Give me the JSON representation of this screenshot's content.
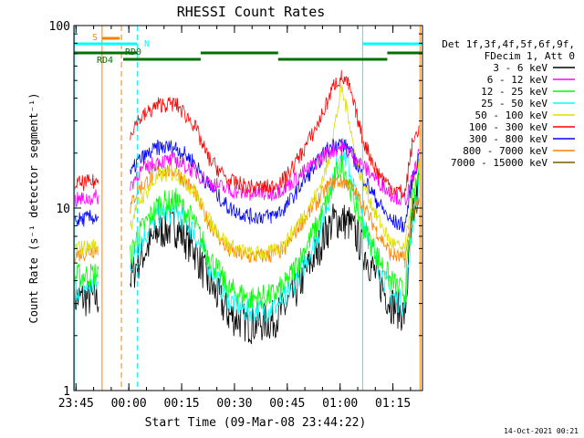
{
  "chart_data": {
    "type": "line",
    "title": "RHESSI Count Rates",
    "xlabel": "Start Time (09-Mar-08 23:44:22)",
    "ylabel": "Count Rate (s⁻¹ detector segment⁻¹)",
    "y_scale": "log",
    "ylim": [
      1,
      100
    ],
    "xlim_minutes": [
      0,
      99
    ],
    "x_ticks": [
      {
        "label": "23:45",
        "minute": 0.6
      },
      {
        "label": "00:00",
        "minute": 15.6
      },
      {
        "label": "00:15",
        "minute": 30.6
      },
      {
        "label": "00:30",
        "minute": 45.6
      },
      {
        "label": "00:45",
        "minute": 60.6
      },
      {
        "label": "01:00",
        "minute": 75.6
      },
      {
        "label": "01:15",
        "minute": 90.6
      }
    ],
    "y_ticks": [
      {
        "label": "1",
        "value": 1
      },
      {
        "label": "10",
        "value": 10
      },
      {
        "label": "100",
        "value": 100
      }
    ],
    "grid": false,
    "legend_position": "right",
    "legend_header": [
      "Det 1f,3f,4f,5f,6f,9f,",
      "FDecim 1, Att 0"
    ],
    "x_minutes": [
      0,
      7,
      8,
      15,
      16,
      18,
      24,
      29,
      34,
      38,
      44,
      50,
      56,
      60,
      64,
      69,
      72,
      74,
      76,
      78,
      80,
      82,
      86,
      90,
      94,
      96,
      98
    ],
    "series": [
      {
        "name": "3 - 6 keV",
        "color": "#000000",
        "values": [
          3.2,
          3.2,
          null,
          null,
          4.0,
          5.0,
          7.5,
          7.8,
          6.0,
          4.0,
          2.6,
          2.3,
          2.4,
          2.8,
          3.8,
          5.8,
          7.6,
          8.6,
          8.6,
          8.3,
          7.2,
          6.0,
          4.2,
          3.0,
          2.6,
          8.0,
          14.0
        ]
      },
      {
        "name": "6 - 12 keV",
        "color": "#ff00ff",
        "values": [
          11.0,
          11.5,
          null,
          null,
          13.0,
          15.5,
          18.0,
          18.2,
          16.0,
          14.0,
          12.5,
          12.0,
          12.0,
          13.0,
          15.0,
          18.0,
          20.0,
          21.0,
          21.5,
          20.5,
          19.0,
          17.0,
          14.5,
          12.0,
          11.0,
          14.0,
          20.0
        ]
      },
      {
        "name": "12 - 25 keV",
        "color": "#00ff00",
        "values": [
          4.2,
          4.4,
          null,
          null,
          5.4,
          7.0,
          10.5,
          11.0,
          8.5,
          5.6,
          3.6,
          3.2,
          3.3,
          3.8,
          5.2,
          8.0,
          11.0,
          14.5,
          18.0,
          14.0,
          10.2,
          8.0,
          5.6,
          4.0,
          3.4,
          10.0,
          16.0
        ]
      },
      {
        "name": "25 - 50 keV",
        "color": "#00ffff",
        "values": [
          3.6,
          3.8,
          null,
          null,
          4.8,
          6.2,
          9.2,
          9.6,
          7.4,
          5.0,
          3.1,
          2.7,
          2.8,
          3.2,
          4.4,
          6.8,
          10.5,
          15.0,
          22.0,
          17.0,
          12.0,
          9.0,
          5.0,
          3.4,
          2.9,
          8.0,
          13.0
        ]
      },
      {
        "name": "50 - 100 keV",
        "color": "#dddd00",
        "values": [
          6.0,
          6.2,
          null,
          null,
          8.0,
          10.5,
          15.0,
          15.5,
          12.5,
          8.8,
          6.2,
          5.6,
          5.7,
          6.4,
          8.4,
          12.0,
          17.0,
          28.0,
          45.0,
          32.0,
          18.5,
          14.0,
          9.0,
          6.5,
          5.8,
          12.0,
          18.0
        ]
      },
      {
        "name": "100 - 300 keV",
        "color": "#ff0000",
        "values": [
          13.5,
          14.0,
          null,
          null,
          26.0,
          30.0,
          37.0,
          37.0,
          29.0,
          19.0,
          14.0,
          13.0,
          13.0,
          14.5,
          19.0,
          28.0,
          38.0,
          48.0,
          52.0,
          47.0,
          34.0,
          24.0,
          16.0,
          13.0,
          12.0,
          22.0,
          28.0
        ]
      },
      {
        "name": "300 - 800 keV",
        "color": "#0000ff",
        "values": [
          8.5,
          9.0,
          null,
          null,
          15.0,
          18.0,
          21.5,
          21.5,
          18.0,
          13.5,
          10.0,
          9.0,
          9.0,
          10.0,
          13.0,
          17.5,
          21.0,
          22.5,
          22.5,
          21.0,
          18.0,
          15.0,
          11.0,
          8.5,
          8.0,
          14.0,
          19.0
        ]
      },
      {
        "name": "800 - 7000 keV",
        "color": "#ff8000",
        "values": [
          5.5,
          6.0,
          null,
          null,
          10.0,
          12.5,
          16.0,
          16.0,
          12.5,
          8.5,
          5.8,
          5.4,
          5.5,
          6.0,
          8.0,
          10.8,
          13.0,
          14.0,
          14.0,
          13.5,
          12.0,
          10.5,
          7.5,
          5.6,
          5.2,
          9.0,
          11.0
        ]
      },
      {
        "name": "7000 - 15000 keV",
        "color": "#7a5a00",
        "values": [
          null,
          null,
          null,
          null,
          null,
          null,
          null,
          null,
          null,
          null,
          null,
          null,
          null,
          null,
          null,
          null,
          null,
          null,
          null,
          null,
          null,
          null,
          null,
          null,
          null,
          9.0,
          10.0
        ]
      }
    ],
    "annotations": [
      {
        "text": "S",
        "color": "#ff8000"
      },
      {
        "text": "N",
        "color": "#00ffff"
      },
      {
        "text": "RD0",
        "color": "#007000"
      },
      {
        "text": "RD4",
        "color": "#007000"
      }
    ],
    "state_bars": {
      "attenuator": {
        "color": "#ff8000",
        "segments": [
          [
            8.0,
            13.0
          ]
        ]
      },
      "saa_night": {
        "color": "#00ffff",
        "segments": [
          [
            0.0,
            18.0
          ],
          [
            82.0,
            99.0
          ]
        ]
      },
      "rd0_upper": {
        "color": "#007000",
        "segments": [
          [
            0.0,
            18.0
          ],
          [
            36.0,
            58.0
          ],
          [
            89.0,
            99.0
          ]
        ]
      },
      "rd4_lower": {
        "color": "#007000",
        "segments": [
          [
            14.0,
            36.0
          ],
          [
            58.0,
            89.0
          ]
        ]
      }
    },
    "vertical_markers": [
      {
        "minute": 8.0,
        "color": "#ff8000",
        "style": "solid"
      },
      {
        "minute": 13.5,
        "color": "#ff8000",
        "style": "dashed"
      },
      {
        "minute": 18.0,
        "color": "#00ffff",
        "style": "dashed"
      },
      {
        "minute": 82.0,
        "color": "#00ffff",
        "style": "solid"
      },
      {
        "minute": 98.3,
        "color": "#ff8000",
        "style": "solid"
      },
      {
        "minute": 99.0,
        "color": "#ff8000",
        "style": "dashed"
      },
      {
        "minute": 0.2,
        "color": "#00ffff",
        "style": "solid"
      }
    ],
    "footer_timestamp": "14-Oct-2021 00:21"
  }
}
